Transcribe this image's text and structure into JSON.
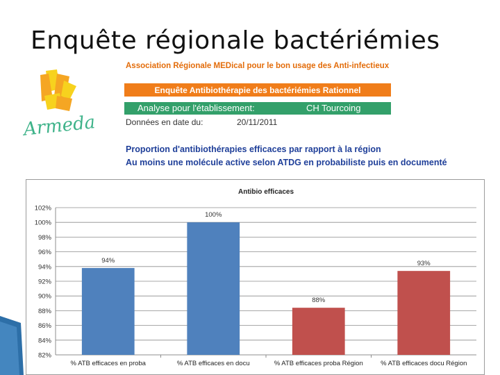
{
  "slide": {
    "title": "Enquête régionale bactériémies"
  },
  "header": {
    "org_name": "Association Régionale MEDical pour le bon usage des Anti-infectieux",
    "survey_banner": "Enquête Antibiothérapie des bactériémies Rationnel",
    "analysis_label": "Analyse pour l'établissement:",
    "establishment": "CH Tourcoing",
    "date_label": "Données en date du:",
    "date_value": "20/11/2011",
    "subtitle_line1": "Proportion d'antibiothérapies efficaces par rapport à la région",
    "subtitle_line2": "Au moins une molécule active selon ATDG en probabiliste puis en documenté"
  },
  "logo": {
    "text": "Armeda",
    "colors": {
      "orange": "#f5a623",
      "yellow": "#f7d21e",
      "green": "#3fb38a"
    }
  },
  "colors": {
    "org_text": "#e36c0a",
    "orange_bar": "#f07d1a",
    "green_bar": "#33a06a",
    "subtitle_text": "#1f3f99",
    "series_establishment": "#4f81bd",
    "series_region": "#c0504d"
  },
  "chart_data": {
    "type": "bar",
    "title": "Antibio efficaces",
    "categories": [
      "% ATB efficaces en proba",
      "% ATB efficaces en docu",
      "% ATB efficaces proba Région",
      "% ATB efficaces docu Région"
    ],
    "values": [
      93.8,
      100,
      88.4,
      93.4
    ],
    "data_labels": [
      "94%",
      "100%",
      "88%",
      "93%"
    ],
    "bar_colors": [
      "#4f81bd",
      "#4f81bd",
      "#c0504d",
      "#c0504d"
    ],
    "ylim": [
      82,
      102
    ],
    "yticks": [
      82,
      84,
      86,
      88,
      90,
      92,
      94,
      96,
      98,
      100,
      102
    ],
    "ytick_labels": [
      "82%",
      "84%",
      "86%",
      "88%",
      "90%",
      "92%",
      "94%",
      "96%",
      "98%",
      "100%",
      "102%"
    ],
    "xlabel": "",
    "ylabel": "",
    "grid": true,
    "legend": false
  }
}
